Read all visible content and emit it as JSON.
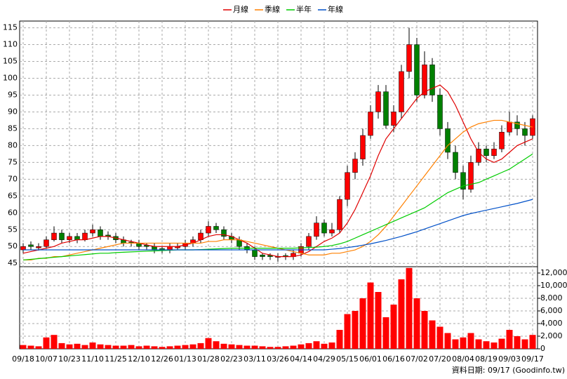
{
  "chart_data": {
    "type": "candlestick",
    "footer": "資料日期: 09/17  (Goodinfo.tw)",
    "categories": [
      "09/18",
      null,
      null,
      "10/07",
      null,
      null,
      "10/23",
      null,
      null,
      "11/10",
      null,
      null,
      "11/25",
      null,
      null,
      "12/10",
      null,
      null,
      "12/26",
      null,
      null,
      "01/13",
      null,
      null,
      "01/28",
      null,
      null,
      "02/23",
      null,
      null,
      "03/11",
      null,
      null,
      "03/26",
      null,
      null,
      "04/14",
      null,
      null,
      "04/29",
      null,
      null,
      "05/15",
      null,
      null,
      "06/01",
      null,
      null,
      "06/16",
      null,
      null,
      "07/02",
      null,
      null,
      "07/20",
      null,
      null,
      "08/04",
      null,
      null,
      "08/19",
      null,
      null,
      "09/03",
      null,
      null,
      "09/17"
    ],
    "up_color": "#ff0000",
    "down_color": "#008000",
    "ohlc": {
      "open": [
        49,
        50.5,
        49.6,
        50,
        52,
        54,
        52,
        53,
        52,
        54,
        55,
        53.4,
        53,
        52,
        51.3,
        51,
        50.4,
        50,
        49.4,
        49,
        49.6,
        50,
        51,
        52,
        54,
        56,
        55,
        53,
        52,
        50,
        49,
        47.5,
        47.4,
        46.8,
        47.3,
        47,
        48,
        50,
        53,
        57,
        54,
        55,
        64,
        72,
        76,
        83,
        90,
        96,
        86,
        90,
        102,
        110,
        95,
        104,
        95,
        85,
        78,
        72,
        67,
        75,
        79,
        77,
        79,
        84,
        87,
        85,
        83
      ],
      "high": [
        51,
        51.5,
        51,
        53,
        56,
        55,
        54,
        54,
        55,
        56.5,
        56,
        54.5,
        54,
        53,
        52,
        52,
        51,
        51,
        50,
        51,
        51,
        52,
        53,
        55,
        57.5,
        57,
        56,
        54,
        53,
        51,
        50,
        48,
        48,
        48,
        48,
        49,
        51,
        54,
        59,
        58,
        57,
        65,
        74,
        78,
        85,
        92,
        98,
        98,
        92,
        104,
        115,
        112,
        108,
        106,
        97,
        87,
        80,
        74,
        77,
        81,
        80,
        81,
        86,
        90,
        89,
        87,
        89
      ],
      "low": [
        48,
        49,
        48.8,
        49.5,
        51.5,
        51,
        51,
        51,
        51.5,
        53,
        52,
        52,
        51,
        50,
        50,
        49,
        49,
        48,
        48,
        48,
        49,
        49,
        50,
        51,
        53,
        54,
        52,
        51,
        49,
        48,
        46,
        46,
        46,
        45.5,
        46,
        46,
        47,
        49,
        52,
        53,
        53,
        54,
        62,
        70,
        74,
        82,
        88,
        85,
        84,
        88,
        100,
        93,
        94,
        93,
        83,
        76,
        70,
        64,
        66,
        74,
        75,
        76,
        78,
        83,
        83,
        80,
        82
      ],
      "close": [
        50,
        50,
        50,
        52,
        54,
        52,
        53,
        52,
        54,
        55,
        53,
        53,
        52,
        51,
        51,
        50,
        50,
        49,
        49,
        50,
        50,
        51,
        52,
        54,
        56,
        55,
        53,
        52,
        50,
        49,
        47,
        47,
        47,
        47,
        47,
        48,
        50,
        53,
        57,
        54,
        55,
        64,
        72,
        76,
        83,
        90,
        96,
        86,
        90,
        102,
        110,
        95,
        104,
        95,
        85,
        78,
        72,
        67,
        75,
        79,
        77,
        79,
        84,
        87,
        85,
        83,
        88
      ]
    },
    "series": [
      {
        "name": "月線",
        "color": "#e00000",
        "values": [
          48,
          48.5,
          49,
          49.5,
          50,
          51,
          51.5,
          52,
          52,
          52.5,
          53,
          53,
          52.5,
          52,
          51.5,
          51,
          50.5,
          50,
          50,
          50,
          50,
          50.5,
          51,
          52,
          53,
          53.5,
          53.5,
          53,
          52,
          51,
          49.5,
          48,
          47.5,
          47,
          47,
          47,
          47.5,
          48.5,
          50,
          51.5,
          52.5,
          54,
          57,
          61,
          66,
          71,
          77,
          82,
          85,
          88,
          91,
          94,
          96,
          97,
          98,
          96,
          92,
          87,
          82,
          78,
          76,
          75,
          76,
          78,
          80,
          81,
          82
        ]
      },
      {
        "name": "季線",
        "color": "#ff8000",
        "values": [
          46,
          46,
          46.5,
          46.5,
          47,
          47,
          47.5,
          48,
          48.5,
          49,
          49.5,
          50,
          50.5,
          51,
          51,
          51,
          51,
          51,
          51,
          51,
          51,
          51,
          51,
          51,
          51.5,
          51.5,
          52,
          52,
          52,
          51.5,
          51,
          50.5,
          50,
          49.5,
          49,
          48.5,
          48,
          47.5,
          47.5,
          47.5,
          48,
          48,
          48.5,
          49,
          50,
          51.5,
          53.5,
          56,
          59,
          62,
          65,
          68,
          71,
          74,
          77,
          80,
          82,
          84,
          85.5,
          86.5,
          87,
          87.5,
          87.5,
          87,
          86.5,
          86,
          85.5
        ]
      },
      {
        "name": "半年",
        "color": "#00cc00",
        "values": [
          46,
          46.2,
          46.4,
          46.6,
          46.8,
          47,
          47.2,
          47.4,
          47.6,
          47.8,
          48,
          48,
          48.2,
          48.3,
          48.4,
          48.5,
          48.6,
          48.7,
          48.8,
          48.9,
          49,
          49,
          49,
          49.1,
          49.2,
          49.3,
          49.4,
          49.5,
          49.5,
          49.5,
          49.5,
          49.5,
          49.5,
          49.5,
          49.5,
          49.5,
          49.6,
          49.7,
          49.8,
          50,
          50.3,
          50.8,
          51.5,
          52.5,
          53.5,
          54.5,
          55.5,
          56.5,
          57.5,
          58.5,
          59.5,
          60.5,
          61.5,
          63,
          64.5,
          66,
          67,
          68,
          68.5,
          69,
          70,
          71,
          72,
          73,
          74.5,
          76,
          77.5
        ]
      },
      {
        "name": "年線",
        "color": "#0050c8",
        "values": [
          49,
          49,
          49,
          49,
          49,
          49,
          49,
          49,
          49,
          49,
          49,
          49,
          49,
          49,
          49,
          49,
          49,
          49,
          49,
          49,
          49,
          49,
          49,
          49,
          49,
          49,
          49,
          49,
          49,
          49,
          49,
          49,
          49,
          49,
          49,
          49,
          49,
          49,
          49,
          49,
          49.2,
          49.4,
          49.7,
          50,
          50.4,
          50.8,
          51.3,
          51.8,
          52.4,
          53,
          53.7,
          54.4,
          55.2,
          56,
          56.8,
          57.6,
          58.4,
          59.2,
          59.8,
          60.3,
          60.8,
          61.3,
          61.8,
          62.3,
          62.8,
          63.4,
          64
        ]
      }
    ],
    "volume": {
      "axis": "y2",
      "color": "#ff0000",
      "values": [
        600,
        500,
        400,
        1800,
        2200,
        900,
        700,
        800,
        600,
        1000,
        700,
        600,
        500,
        500,
        600,
        400,
        500,
        400,
        300,
        400,
        500,
        600,
        700,
        900,
        1700,
        1200,
        800,
        700,
        600,
        500,
        500,
        400,
        300,
        300,
        400,
        500,
        700,
        900,
        1200,
        800,
        1000,
        3000,
        5500,
        6000,
        8000,
        10500,
        9000,
        5000,
        7000,
        11000,
        12800,
        8000,
        6000,
        4500,
        3500,
        2500,
        1500,
        1800,
        2500,
        1500,
        1200,
        1000,
        1600,
        3000,
        2000,
        1500,
        2200
      ]
    },
    "ylim": [
      44,
      117
    ],
    "yticks": [
      45,
      50,
      55,
      60,
      65,
      70,
      75,
      80,
      85,
      90,
      95,
      100,
      105,
      110,
      115
    ],
    "y2lim": [
      0,
      13000
    ],
    "y2ticks": [
      0,
      {
        "value": 2000,
        "label": "2,000"
      },
      {
        "value": 4000,
        "label": "4,000"
      },
      {
        "value": 6000,
        "label": "6,000"
      },
      {
        "value": 8000,
        "label": "8,000"
      },
      {
        "value": 10000,
        "label": "10,000"
      },
      {
        "value": 12000,
        "label": "12,000"
      }
    ],
    "grid": true
  }
}
